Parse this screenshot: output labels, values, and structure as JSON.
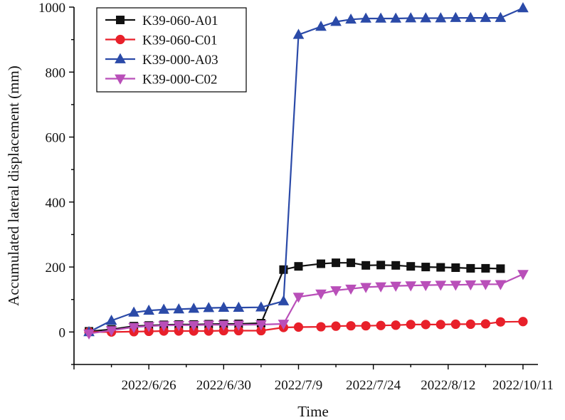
{
  "chart_data": {
    "type": "line",
    "title": "",
    "xlabel": "Time",
    "ylabel": "Accumulated lateral displacement (mm)",
    "ylim": [
      -100,
      1000
    ],
    "yticks": [
      0,
      200,
      400,
      600,
      800,
      1000
    ],
    "xlim": [
      0,
      31
    ],
    "xtick_positions": [
      5,
      10,
      15,
      20,
      25,
      30
    ],
    "xtick_labels": [
      "2022/6/26",
      "2022/6/30",
      "2022/7/9",
      "2022/7/24",
      "2022/8/12",
      "2022/10/11"
    ],
    "grid": false,
    "legend_position": "top-left",
    "series": [
      {
        "name": "K39-060-A01",
        "color": "#111111",
        "marker": "square",
        "x": [
          1,
          2.5,
          4,
          5,
          6,
          7,
          8,
          9,
          10,
          11,
          12.5,
          14,
          15,
          16.5,
          17.5,
          18.5,
          19.5,
          20.5,
          21.5,
          22.5,
          23.5,
          24.5,
          25.5,
          26.5,
          27.5,
          28.5
        ],
        "y": [
          2,
          8,
          18,
          20,
          22,
          23,
          23,
          24,
          25,
          25,
          27,
          192,
          202,
          210,
          213,
          213,
          205,
          206,
          205,
          202,
          200,
          199,
          198,
          196,
          196,
          195
        ]
      },
      {
        "name": "K39-060-C01",
        "color": "#e8202a",
        "marker": "circle",
        "x": [
          1,
          2.5,
          4,
          5,
          6,
          7,
          8,
          9,
          10,
          11,
          12.5,
          14,
          15,
          16.5,
          17.5,
          18.5,
          19.5,
          20.5,
          21.5,
          22.5,
          23.5,
          24.5,
          25.5,
          26.5,
          27.5,
          28.5,
          30
        ],
        "y": [
          0,
          0,
          1,
          2,
          3,
          3,
          3,
          3,
          4,
          4,
          4,
          14,
          15,
          16,
          18,
          19,
          19,
          20,
          21,
          23,
          23,
          23,
          24,
          24,
          25,
          31,
          32
        ]
      },
      {
        "name": "K39-000-A03",
        "color": "#2b4aa8",
        "marker": "triangle-up",
        "x": [
          1,
          2.5,
          4,
          5,
          6,
          7,
          8,
          9,
          10,
          11,
          12.5,
          14,
          15,
          16.5,
          17.5,
          18.5,
          19.5,
          20.5,
          21.5,
          22.5,
          23.5,
          24.5,
          25.5,
          26.5,
          27.5,
          28.5,
          30
        ],
        "y": [
          0,
          35,
          60,
          66,
          69,
          70,
          72,
          74,
          75,
          75,
          76,
          95,
          915,
          940,
          955,
          962,
          965,
          965,
          965,
          966,
          966,
          966,
          967,
          967,
          967,
          967,
          997
        ]
      },
      {
        "name": "K39-000-C02",
        "color": "#b94fb9",
        "marker": "triangle-down",
        "x": [
          1,
          2.5,
          4,
          5,
          6,
          7,
          8,
          9,
          10,
          11,
          12.5,
          14,
          15,
          16.5,
          17.5,
          18.5,
          19.5,
          20.5,
          21.5,
          22.5,
          23.5,
          24.5,
          25.5,
          26.5,
          27.5,
          28.5,
          30
        ],
        "y": [
          -5,
          5,
          15,
          18,
          20,
          21,
          21,
          22,
          22,
          22,
          23,
          25,
          108,
          118,
          128,
          133,
          138,
          140,
          142,
          143,
          144,
          145,
          145,
          146,
          147,
          147,
          178
        ]
      }
    ]
  }
}
